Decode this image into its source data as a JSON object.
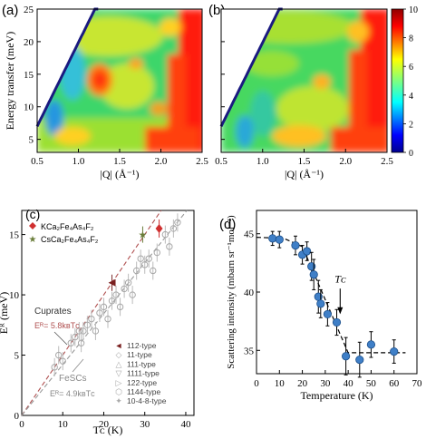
{
  "chart_data": [
    {
      "panel": "(a)",
      "type": "heatmap",
      "xlabel": "|Q| (Å⁻¹)",
      "ylabel": "Energy transfer (meV)",
      "xlim": [
        0.5,
        2.5
      ],
      "ylim": [
        3,
        25
      ],
      "xticks": [
        "0.5",
        "1.0",
        "1.5",
        "2.0",
        "2.5"
      ],
      "yticks": [
        "5",
        "10",
        "15",
        "20",
        "25"
      ],
      "colorscale": "jet",
      "features": "kinematic limit at low Q (white), resonance hot spot near |Q|=1.2, E=13 meV; red high-intensity region at |Q|>2.1"
    },
    {
      "panel": "(b)",
      "type": "heatmap",
      "xlabel": "|Q| (Å⁻¹)",
      "xlim": [
        0.5,
        2.5
      ],
      "ylim": [
        3,
        25
      ],
      "xticks": [
        "0.5",
        "1.0",
        "1.5",
        "2.0",
        "2.5"
      ],
      "colorbar": {
        "min": 0,
        "max": 10,
        "ticks": [
          "0",
          "2",
          "4",
          "6",
          "8",
          "10"
        ]
      },
      "features": "same region without the resonance hot spot"
    },
    {
      "panel": "(c)",
      "type": "scatter",
      "xlabel": "Tᴄ (K)",
      "ylabel": "Eᴿ (meV)",
      "xlim": [
        0,
        42
      ],
      "ylim": [
        0,
        17
      ],
      "xticks": [
        "0",
        "10",
        "20",
        "30",
        "40"
      ],
      "yticks": [
        "0",
        "5",
        "10",
        "15"
      ],
      "lines": [
        {
          "name": "Cuprates",
          "formula": "Eᴿ= 5.8kʙTᴄ",
          "slope_meV_per_K": 0.5,
          "color": "#b05050"
        },
        {
          "name": "FeSCs",
          "formula": "Eᴿ= 4.9kʙTᴄ",
          "slope_meV_per_K": 0.422,
          "color": "#999999"
        }
      ],
      "legend_top": [
        {
          "label": "KCa₂Fe₄As₄F₂",
          "marker": "diamond",
          "color": "#d03030"
        },
        {
          "label": "CsCa₂Fe₄As₄F₂",
          "marker": "star",
          "color": "#6a7d3a"
        }
      ],
      "legend_types": [
        "112-type",
        "11-type",
        "111-type",
        "1111-type",
        "122-type",
        "1144-type",
        "10-4-8-type"
      ],
      "series": [
        {
          "name": "KCa₂Fe₄As₄F₂",
          "x": [
            33.5
          ],
          "y": [
            15.5
          ]
        },
        {
          "name": "CsCa₂Fe₄As₄F₂",
          "x": [
            29.5
          ],
          "y": [
            15
          ]
        },
        {
          "name": "112-type",
          "x": [
            22
          ],
          "y": [
            11
          ]
        },
        {
          "name": "others",
          "x": [
            8,
            9,
            10,
            12,
            13,
            14,
            14.5,
            15,
            16,
            17,
            18,
            19,
            20,
            21,
            22,
            23,
            24,
            25,
            26,
            27,
            28,
            29,
            30,
            31,
            32,
            33,
            35,
            36,
            37,
            38
          ],
          "y": [
            4,
            5,
            4.5,
            6,
            6.5,
            7,
            6,
            7,
            7.5,
            8,
            7,
            8.5,
            9,
            8,
            9.5,
            10,
            9,
            10.5,
            11,
            10,
            12,
            13,
            12.5,
            13,
            12,
            13.5,
            15,
            14,
            15.5,
            16
          ]
        }
      ]
    },
    {
      "panel": "(d)",
      "type": "scatter",
      "xlabel": "Temperature (K)",
      "ylabel": "Scattering intensity (mbarn sr⁻¹mol⁻¹)",
      "xlim": [
        0,
        70
      ],
      "ylim": [
        33,
        47
      ],
      "xticks": [
        "0",
        "10",
        "20",
        "30",
        "40",
        "50",
        "60",
        "70"
      ],
      "yticks": [
        "35",
        "40",
        "45"
      ],
      "annotation": "Tᴄ",
      "annotation_x": 36.5,
      "x": [
        7,
        10,
        17,
        20,
        22,
        24,
        25,
        27,
        28,
        31,
        35,
        39,
        45,
        50,
        60
      ],
      "y": [
        44.6,
        44.5,
        44.0,
        43.2,
        43.5,
        42.2,
        41.5,
        39.6,
        39.0,
        38.1,
        37.4,
        34.5,
        34.2,
        35.5,
        34.9
      ],
      "err": [
        0.6,
        0.7,
        0.8,
        0.8,
        0.8,
        1.2,
        1.3,
        1.4,
        1.2,
        1.0,
        1.1,
        1.6,
        1.5,
        1.1,
        1.0
      ],
      "fit": {
        "x": [
          0,
          12,
          20,
          40,
          65
        ],
        "y": [
          44.7,
          44.6,
          43.9,
          34.8,
          34.8
        ]
      }
    }
  ]
}
